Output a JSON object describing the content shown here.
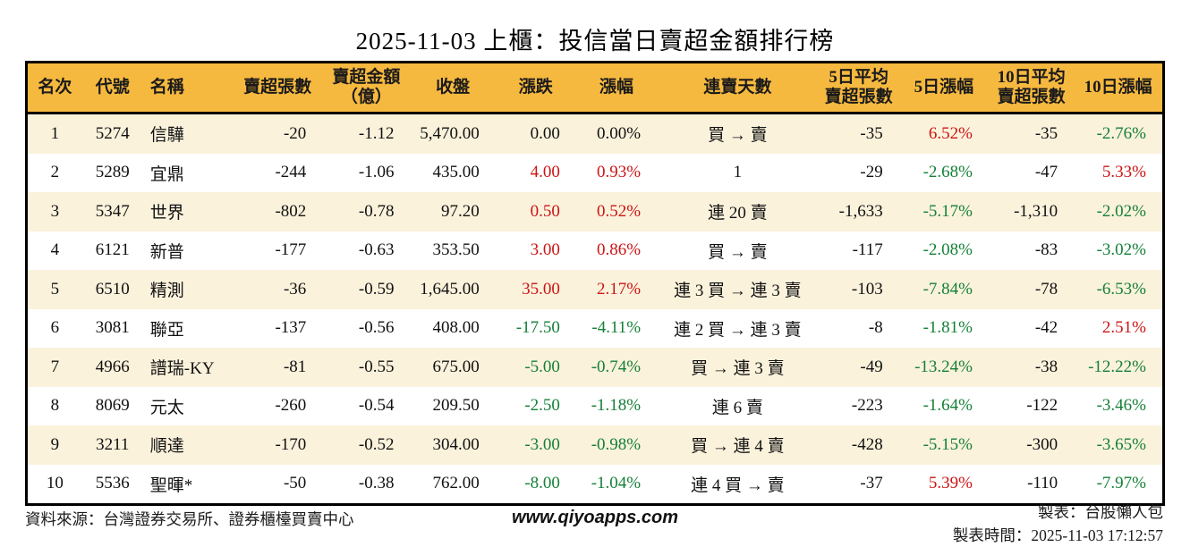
{
  "title": "2025-11-03 上櫃：投信當日賣超金額排行榜",
  "colors": {
    "up_red": "#cc1414",
    "down_green": "#158038",
    "header_bg": "#f6b93f",
    "row_alt_bg": "#fbf2dc",
    "border": "#000000"
  },
  "chart_data": {
    "type": "table",
    "title": "2025-11-03 上櫃：投信當日賣超金額排行榜",
    "columns": [
      "名次",
      "代號",
      "名稱",
      "賣超張數",
      "賣超金額\n（億）",
      "收盤",
      "漲跌",
      "漲幅",
      "連賣天數",
      "5日平均\n賣超張數",
      "5日漲幅",
      "10日平均\n賣超張數",
      "10日漲幅"
    ],
    "column_keys": [
      "rank",
      "code",
      "name",
      "sell_volume",
      "sell_amount",
      "close",
      "change",
      "change_pct",
      "streak",
      "avg5_volume",
      "pct5",
      "avg10_volume",
      "pct10"
    ],
    "rows": [
      [
        "1",
        "5274",
        "信驊",
        "-20",
        "-1.12",
        "5,470.00",
        "0.00",
        "0.00%",
        "買 → 賣",
        "-35",
        "6.52%",
        "-35",
        "-2.76%"
      ],
      [
        "2",
        "5289",
        "宜鼎",
        "-244",
        "-1.06",
        "435.00",
        "4.00",
        "0.93%",
        "1",
        "-29",
        "-2.68%",
        "-47",
        "5.33%"
      ],
      [
        "3",
        "5347",
        "世界",
        "-802",
        "-0.78",
        "97.20",
        "0.50",
        "0.52%",
        "連 20 賣",
        "-1,633",
        "-5.17%",
        "-1,310",
        "-2.02%"
      ],
      [
        "4",
        "6121",
        "新普",
        "-177",
        "-0.63",
        "353.50",
        "3.00",
        "0.86%",
        "買 → 賣",
        "-117",
        "-2.08%",
        "-83",
        "-3.02%"
      ],
      [
        "5",
        "6510",
        "精測",
        "-36",
        "-0.59",
        "1,645.00",
        "35.00",
        "2.17%",
        "連 3 買 → 連 3 賣",
        "-103",
        "-7.84%",
        "-78",
        "-6.53%"
      ],
      [
        "6",
        "3081",
        "聯亞",
        "-137",
        "-0.56",
        "408.00",
        "-17.50",
        "-4.11%",
        "連 2 買 → 連 3 賣",
        "-8",
        "-1.81%",
        "-42",
        "2.51%"
      ],
      [
        "7",
        "4966",
        "譜瑞-KY",
        "-81",
        "-0.55",
        "675.00",
        "-5.00",
        "-0.74%",
        "買 → 連 3 賣",
        "-49",
        "-13.24%",
        "-38",
        "-12.22%"
      ],
      [
        "8",
        "8069",
        "元太",
        "-260",
        "-0.54",
        "209.50",
        "-2.50",
        "-1.18%",
        "連 6 賣",
        "-223",
        "-1.64%",
        "-122",
        "-3.46%"
      ],
      [
        "9",
        "3211",
        "順達",
        "-170",
        "-0.52",
        "304.00",
        "-3.00",
        "-0.98%",
        "買 → 連 4 賣",
        "-428",
        "-5.15%",
        "-300",
        "-3.65%"
      ],
      [
        "10",
        "5536",
        "聖暉*",
        "-50",
        "-0.38",
        "762.00",
        "-8.00",
        "-1.04%",
        "連 4 買 → 賣",
        "-37",
        "5.39%",
        "-110",
        "-7.97%"
      ]
    ]
  },
  "footer": {
    "source": "資料來源：台灣證券交易所、證券櫃檯買賣中心",
    "website": "www.qiyoapps.com",
    "maker": "製表：台股懶人包",
    "made_time": "製表時間：2025-11-03 17:12:57"
  }
}
